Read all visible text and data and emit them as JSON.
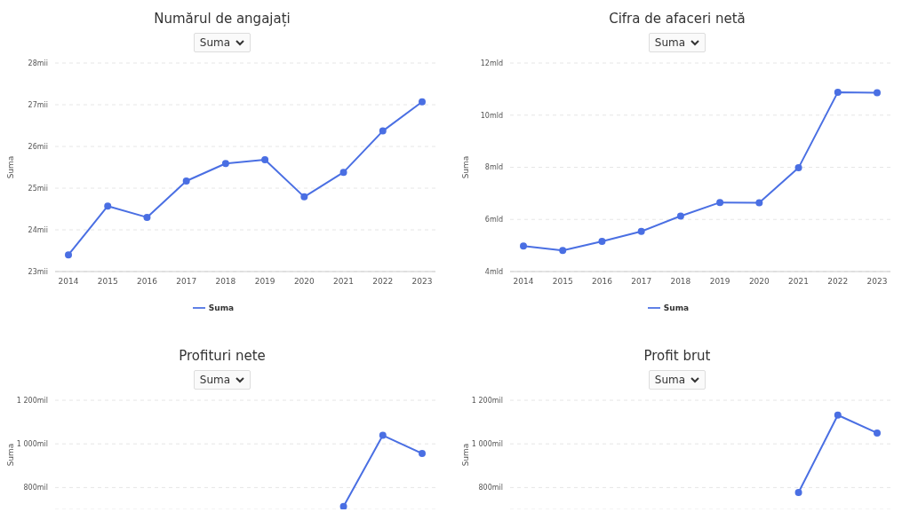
{
  "chart_data": [
    {
      "type": "line",
      "title": "Numărul de angajați",
      "annotations": [
        "Suma"
      ],
      "ylabel": "Suma",
      "categories": [
        "2014",
        "2015",
        "2016",
        "2017",
        "2018",
        "2019",
        "2020",
        "2021",
        "2022",
        "2023"
      ],
      "series": [
        {
          "name": "Suma",
          "color": "#4a6fe3",
          "values": [
            23.4,
            24.57,
            24.3,
            25.17,
            25.59,
            25.68,
            24.79,
            25.38,
            26.37,
            27.07
          ]
        }
      ],
      "ylim": [
        23,
        28
      ],
      "yticks": [
        {
          "value": 23,
          "label": "23mii"
        },
        {
          "value": 24,
          "label": "24mii"
        },
        {
          "value": 25,
          "label": "25mii"
        },
        {
          "value": 26,
          "label": "26mii"
        },
        {
          "value": 27,
          "label": "27mii"
        },
        {
          "value": 28,
          "label": "28mii"
        }
      ],
      "grid": "y",
      "legend": "bottom",
      "marker": "circle",
      "line_style": "solid"
    },
    {
      "type": "line",
      "title": "Cifra de afaceri netă",
      "annotations": [
        "Suma"
      ],
      "ylabel": "Suma",
      "categories": [
        "2014",
        "2015",
        "2016",
        "2017",
        "2018",
        "2019",
        "2020",
        "2021",
        "2022",
        "2023"
      ],
      "series": [
        {
          "name": "Suma",
          "color": "#4a6fe3",
          "values": [
            4.98,
            4.81,
            5.16,
            5.54,
            6.13,
            6.65,
            6.64,
            7.98,
            10.88,
            10.86
          ]
        }
      ],
      "ylim": [
        4,
        12
      ],
      "yticks": [
        {
          "value": 4,
          "label": "4mld"
        },
        {
          "value": 6,
          "label": "6mld"
        },
        {
          "value": 8,
          "label": "8mld"
        },
        {
          "value": 10,
          "label": "10mld"
        },
        {
          "value": 12,
          "label": "12mld"
        }
      ],
      "grid": "y",
      "legend": "bottom",
      "marker": "circle",
      "line_style": "solid"
    },
    {
      "type": "line",
      "title": "Profituri nete",
      "annotations": [
        "Suma"
      ],
      "ylabel": "Suma",
      "categories": [
        null,
        null,
        null,
        null,
        null,
        null,
        null,
        null,
        null,
        null
      ],
      "tick_labels": "y",
      "series": [
        {
          "color": "#4a6fe3",
          "values": [
            null,
            null,
            null,
            null,
            null,
            null,
            null,
            713,
            1039,
            956
          ]
        }
      ],
      "ylim": [
        700,
        1200
      ],
      "yticks": [
        {
          "value": 800,
          "label": "800mil"
        },
        {
          "value": 1000,
          "label": "1 000mil"
        },
        {
          "value": 1200,
          "label": "1 200mil"
        }
      ],
      "grid": "y",
      "marker": "circle",
      "line_style": "solid"
    },
    {
      "type": "line",
      "title": "Profit brut",
      "annotations": [
        "Suma"
      ],
      "ylabel": "Suma",
      "categories": [
        null,
        null,
        null,
        null,
        null,
        null,
        null,
        null,
        null,
        null
      ],
      "tick_labels": "y",
      "series": [
        {
          "color": "#4a6fe3",
          "values": [
            null,
            null,
            null,
            null,
            null,
            null,
            null,
            777,
            1132,
            1050
          ]
        }
      ],
      "ylim": [
        700,
        1200
      ],
      "yticks": [
        {
          "value": 800,
          "label": "800mil"
        },
        {
          "value": 1000,
          "label": "1 000mil"
        },
        {
          "value": 1200,
          "label": "1 200mil"
        }
      ],
      "grid": "y",
      "marker": "circle",
      "line_style": "solid"
    }
  ]
}
